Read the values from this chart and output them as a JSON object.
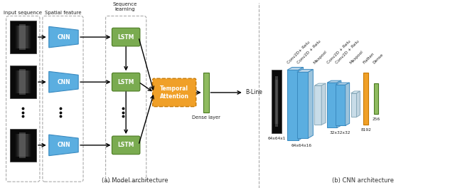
{
  "fig_width": 6.4,
  "fig_height": 2.64,
  "dpi": 100,
  "background": "#ffffff",
  "title_a": "(a) Model architecture",
  "title_b": "(b) CNN architecture",
  "labels": {
    "input_seq": "Input sequence",
    "spatial": "Spatial feature",
    "seq_learn": "Sequence\nlearning",
    "dense_layer": "Dense layer",
    "b_line": "B-Line",
    "cnn": "CNN",
    "lstm": "LSTM",
    "temporal": "Temporal\nAttention",
    "dims_input": "64x64x1",
    "dims_conv1": "64x64x16",
    "dims_conv2": "32x32x32",
    "dims_flatten": "8192",
    "dims_dense": "256",
    "lbl_conv1a": "Conv2D+ Relu",
    "lbl_conv1b": "Conv2D + Relu",
    "lbl_maxpool1": "Maxpool",
    "lbl_conv2a": "Conv2D + Relu",
    "lbl_conv2b": "Conv2D + Relu",
    "lbl_maxpool2": "Maxpool",
    "lbl_flatten": "Flatten",
    "lbl_dense": "Dense"
  },
  "colors": {
    "cnn_blue": "#5baee0",
    "lstm_green": "#7aab50",
    "attention_orange": "#f0a028",
    "dense_green": "#8fbb60",
    "flatten_orange": "#f0a028",
    "conv_blue": "#5baee0",
    "maxpool_light": "#b8d4e8",
    "black": "#000000",
    "dashed_gray": "#888888",
    "image_bg": "#111111"
  }
}
